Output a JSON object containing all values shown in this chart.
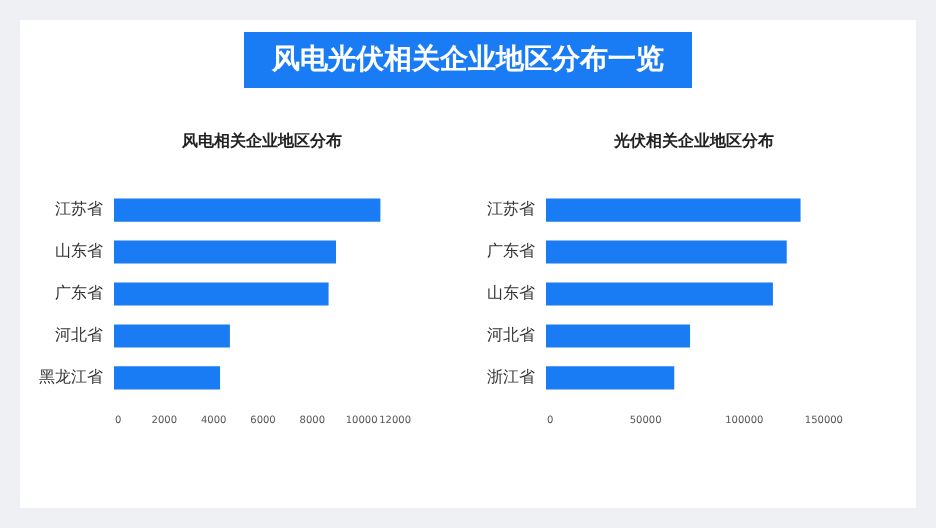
{
  "chart_data": [
    {
      "type": "bar",
      "orientation": "horizontal",
      "title": "风电相关企业地区分布",
      "annotations": [
        "风电光伏相关企业地区分布一览"
      ],
      "categories": [
        "江苏省",
        "山东省",
        "广东省",
        "河北省",
        "黑龙江省"
      ],
      "values": [
        10800,
        9000,
        8700,
        4700,
        4300
      ],
      "color": "#1a7cf5",
      "xlim": [
        0,
        12000
      ],
      "xticks": [
        0,
        2000,
        4000,
        6000,
        8000,
        10000,
        12000
      ],
      "grid": false
    },
    {
      "type": "bar",
      "orientation": "horizontal",
      "title": "光伏相关企业地区分布",
      "categories": [
        "江苏省",
        "广东省",
        "山东省",
        "河北省",
        "浙江省"
      ],
      "values": [
        129000,
        122000,
        115000,
        73000,
        65000
      ],
      "color": "#1a7cf5",
      "xlim": [
        0,
        150000
      ],
      "xticks": [
        0,
        50000,
        100000,
        150000
      ],
      "grid": false
    }
  ]
}
